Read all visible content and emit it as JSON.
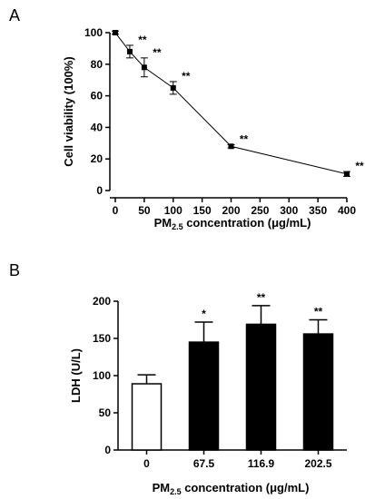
{
  "panels": [
    {
      "label": "A"
    },
    {
      "label": "B"
    }
  ],
  "chart_data": [
    {
      "type": "line",
      "x": [
        0,
        25,
        50,
        100,
        200,
        400
      ],
      "y": [
        100,
        88,
        78,
        65,
        28,
        10.5
      ],
      "error": [
        1,
        4,
        6,
        4,
        1,
        1.5
      ],
      "significance": [
        "",
        "**",
        "**",
        "**",
        "**",
        "**"
      ],
      "ylabel": "Cell viability (100%)",
      "xlabel_prefix": "PM",
      "xlabel_sub": "2.5",
      "xlabel_suffix": " concentration (μg/mL)",
      "xticks": [
        0,
        50,
        100,
        150,
        200,
        250,
        300,
        350,
        400
      ],
      "yticks": [
        0,
        20,
        40,
        60,
        80,
        100
      ],
      "xlim": [
        0,
        400
      ],
      "ylim": [
        0,
        100
      ],
      "marker_color": "#000000"
    },
    {
      "type": "bar",
      "categories": [
        "0",
        "67.5",
        "116.9",
        "202.5"
      ],
      "values": [
        89,
        145,
        169,
        156
      ],
      "error": [
        12,
        27,
        25,
        19
      ],
      "significance": [
        "",
        "*",
        "**",
        "**"
      ],
      "fills": [
        "#ffffff",
        "#000000",
        "#000000",
        "#000000"
      ],
      "ylabel": "LDH (U/L)",
      "xlabel_prefix": "PM",
      "xlabel_sub": "2.5",
      "xlabel_suffix": " concentration (μg/mL)",
      "yticks": [
        0,
        50,
        100,
        150,
        200
      ],
      "ylim": [
        0,
        200
      ]
    }
  ]
}
